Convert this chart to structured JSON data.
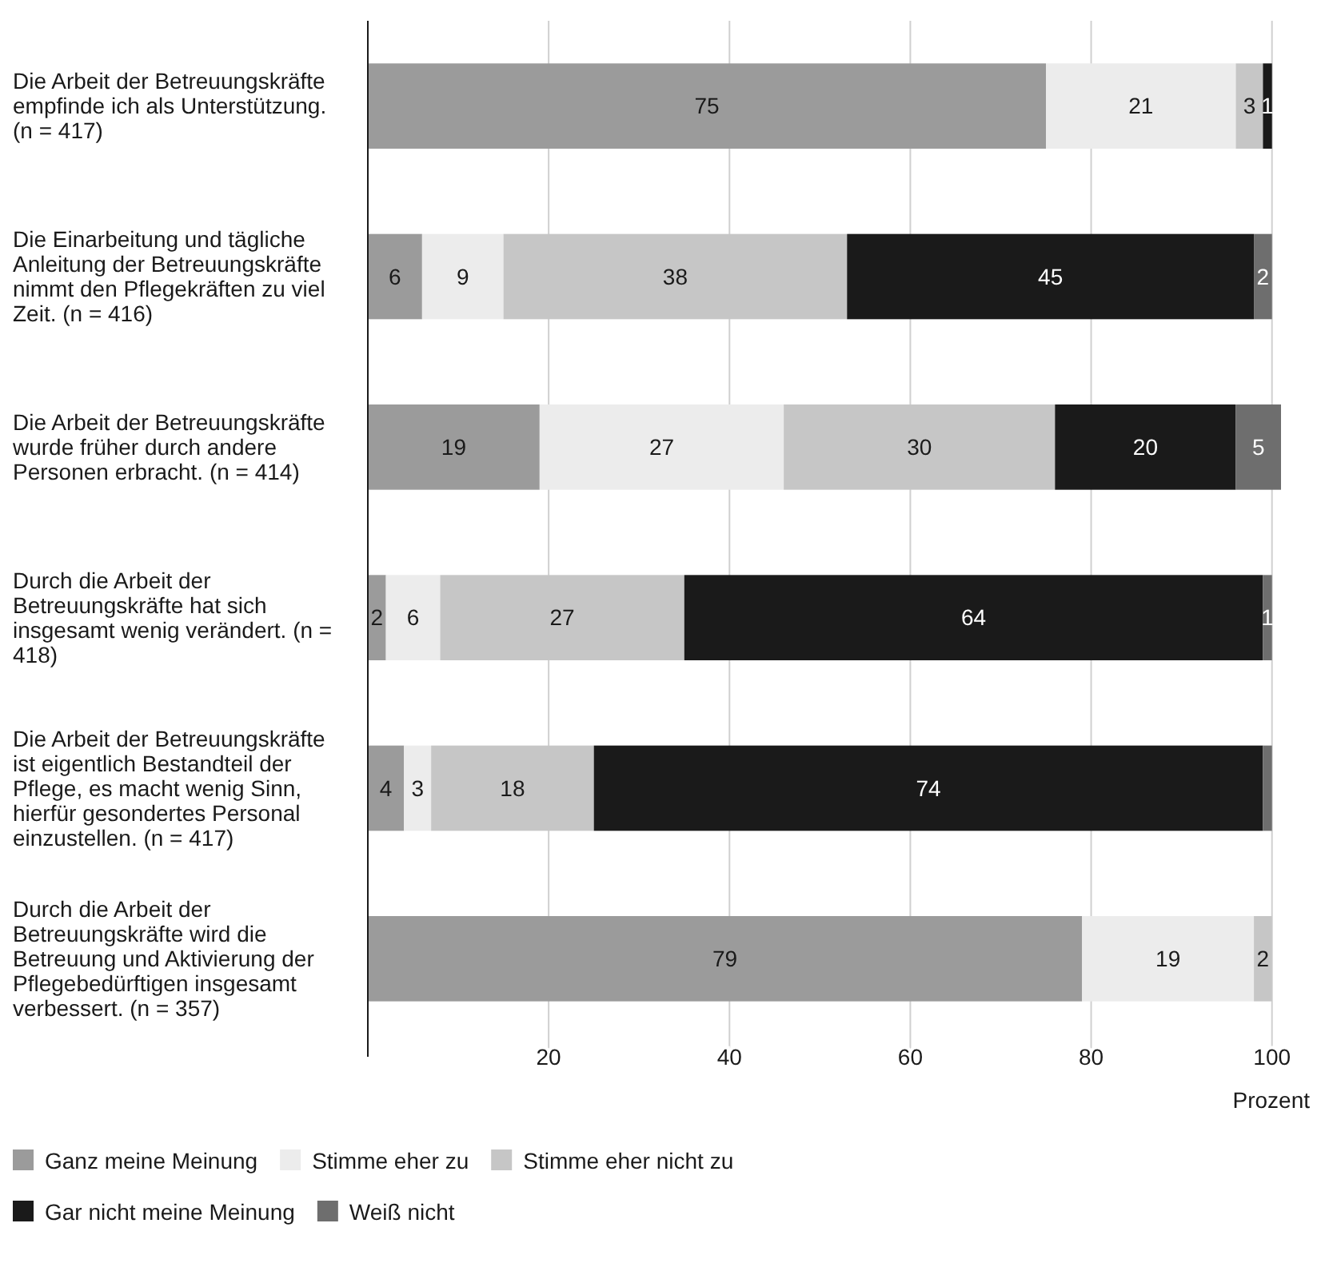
{
  "chart_data": {
    "type": "bar",
    "orientation": "horizontal",
    "stacked": true,
    "xlabel": "Prozent",
    "categories": [
      "Die Arbeit der Betreuungskräfte empfinde ich als Unterstützung. (n = 417)",
      "Die Einarbeitung und tägliche Anleitung der Betreuungskräfte nimmt den Pflegekräften zu viel Zeit. (n = 416)",
      "Die Arbeit der Betreuungskräfte wurde früher durch andere Personen erbracht. (n = 414)",
      "Durch die Arbeit der Betreuungskräfte hat sich insgesamt wenig verändert. (n = 418)",
      "Die Arbeit der Betreuungskräfte ist eigentlich Bestandteil der Pflege, es macht wenig Sinn, hierfür gesondertes Personal einzustellen. (n = 417)",
      "Durch die Arbeit der Betreuungskräfte wird die Betreuung und Aktivierung der Pflegebedürftigen insgesamt verbessert. (n = 357)"
    ],
    "series": [
      {
        "name": "Ganz meine Meinung",
        "color": "#9b9b9b",
        "values": [
          75,
          6,
          19,
          2,
          4,
          79
        ]
      },
      {
        "name": "Stimme eher zu",
        "color": "#ececec",
        "values": [
          21,
          9,
          27,
          6,
          3,
          19
        ]
      },
      {
        "name": "Stimme eher nicht zu",
        "color": "#c6c6c6",
        "values": [
          3,
          38,
          30,
          27,
          18,
          2
        ]
      },
      {
        "name": "Gar nicht meine Meinung",
        "color": "#1a1a1a",
        "values": [
          1,
          45,
          20,
          64,
          74,
          null
        ]
      },
      {
        "name": "Weiß nicht",
        "color": "#6e6e6e",
        "values": [
          null,
          2,
          5,
          1,
          1,
          null
        ],
        "value_labels": [
          null,
          "2",
          "5",
          "1",
          null,
          null
        ]
      }
    ],
    "xlim": [
      0,
      101
    ],
    "xticks": [
      20,
      40,
      60,
      80,
      100
    ],
    "grid": "x",
    "legend": "bottom",
    "data_labels": true
  }
}
